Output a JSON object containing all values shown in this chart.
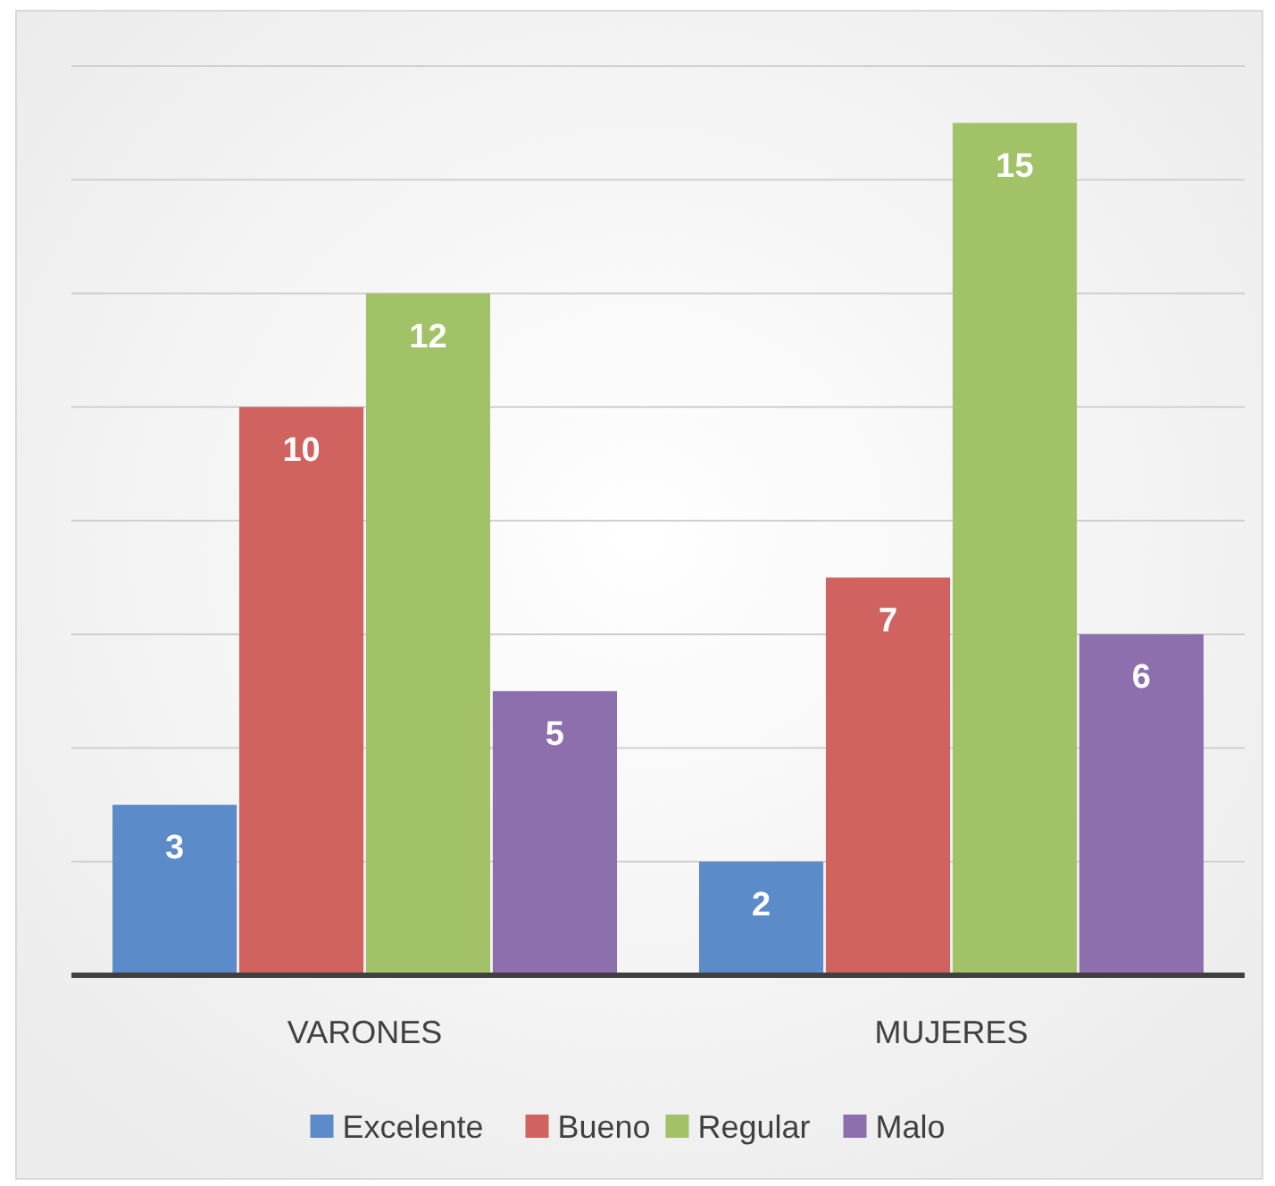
{
  "chart_data": {
    "type": "bar",
    "categories": [
      "VARONES",
      "MUJERES"
    ],
    "series": [
      {
        "name": "Excelente",
        "color": "#5b8bc8",
        "values": [
          3,
          2
        ]
      },
      {
        "name": "Bueno",
        "color": "#d0625f",
        "values": [
          10,
          7
        ]
      },
      {
        "name": "Regular",
        "color": "#a1c266",
        "values": [
          12,
          15
        ]
      },
      {
        "name": "Malo",
        "color": "#8e6fae",
        "values": [
          5,
          6
        ]
      }
    ],
    "ylim": [
      0,
      16
    ],
    "yticks": [
      {
        "value": 0,
        "label": null
      },
      {
        "value": 2,
        "label": null
      },
      {
        "value": 4,
        "label": null
      },
      {
        "value": 6,
        "label": null
      },
      {
        "value": 8,
        "label": null
      },
      {
        "value": 10,
        "label": null
      },
      {
        "value": 12,
        "label": null
      },
      {
        "value": 14,
        "label": null
      },
      {
        "value": 16,
        "label": null
      }
    ],
    "tick_labels": "x",
    "grid": "y",
    "legend": "bottom",
    "data_labels": true
  }
}
